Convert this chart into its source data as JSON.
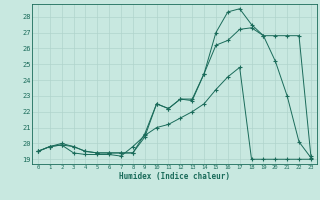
{
  "xlabel": "Humidex (Indice chaleur)",
  "bg_color": "#c8e8e0",
  "grid_color": "#b0d4cc",
  "line_color": "#1a6b5a",
  "xlim": [
    -0.5,
    23.5
  ],
  "ylim": [
    18.7,
    28.8
  ],
  "yticks": [
    19,
    20,
    21,
    22,
    23,
    24,
    25,
    26,
    27,
    28
  ],
  "xticks": [
    0,
    1,
    2,
    3,
    4,
    5,
    6,
    7,
    8,
    9,
    10,
    11,
    12,
    13,
    14,
    15,
    16,
    17,
    18,
    19,
    20,
    21,
    22,
    23
  ],
  "line1_x": [
    0,
    1,
    2,
    3,
    4,
    5,
    6,
    7,
    8,
    9,
    10,
    11,
    12,
    13,
    14,
    15,
    16,
    17,
    18,
    19,
    20,
    21,
    22,
    23
  ],
  "line1_y": [
    19.5,
    19.8,
    19.9,
    19.4,
    19.3,
    19.3,
    19.3,
    19.2,
    19.8,
    20.5,
    21.0,
    21.2,
    21.6,
    22.0,
    22.5,
    23.4,
    24.2,
    24.8,
    19.0,
    19.0,
    19.0,
    19.0,
    19.0,
    19.0
  ],
  "line2_x": [
    0,
    1,
    2,
    3,
    4,
    5,
    6,
    7,
    8,
    9,
    10,
    11,
    12,
    13,
    14,
    15,
    16,
    17,
    18,
    19,
    20,
    21,
    22,
    23
  ],
  "line2_y": [
    19.5,
    19.8,
    19.9,
    19.8,
    19.5,
    19.4,
    19.4,
    19.4,
    19.4,
    20.4,
    22.5,
    22.2,
    22.8,
    22.7,
    24.4,
    26.2,
    26.5,
    27.2,
    27.3,
    26.8,
    25.2,
    23.0,
    20.1,
    19.1
  ],
  "line3_x": [
    0,
    1,
    2,
    3,
    4,
    5,
    6,
    7,
    8,
    9,
    10,
    11,
    12,
    13,
    14,
    15,
    16,
    17,
    18,
    19,
    20,
    21,
    22,
    23
  ],
  "line3_y": [
    19.5,
    19.8,
    20.0,
    19.8,
    19.5,
    19.4,
    19.4,
    19.4,
    19.4,
    20.6,
    22.5,
    22.2,
    22.8,
    22.8,
    24.4,
    27.0,
    28.3,
    28.5,
    27.5,
    26.8,
    26.8,
    26.8,
    26.8,
    19.2
  ]
}
